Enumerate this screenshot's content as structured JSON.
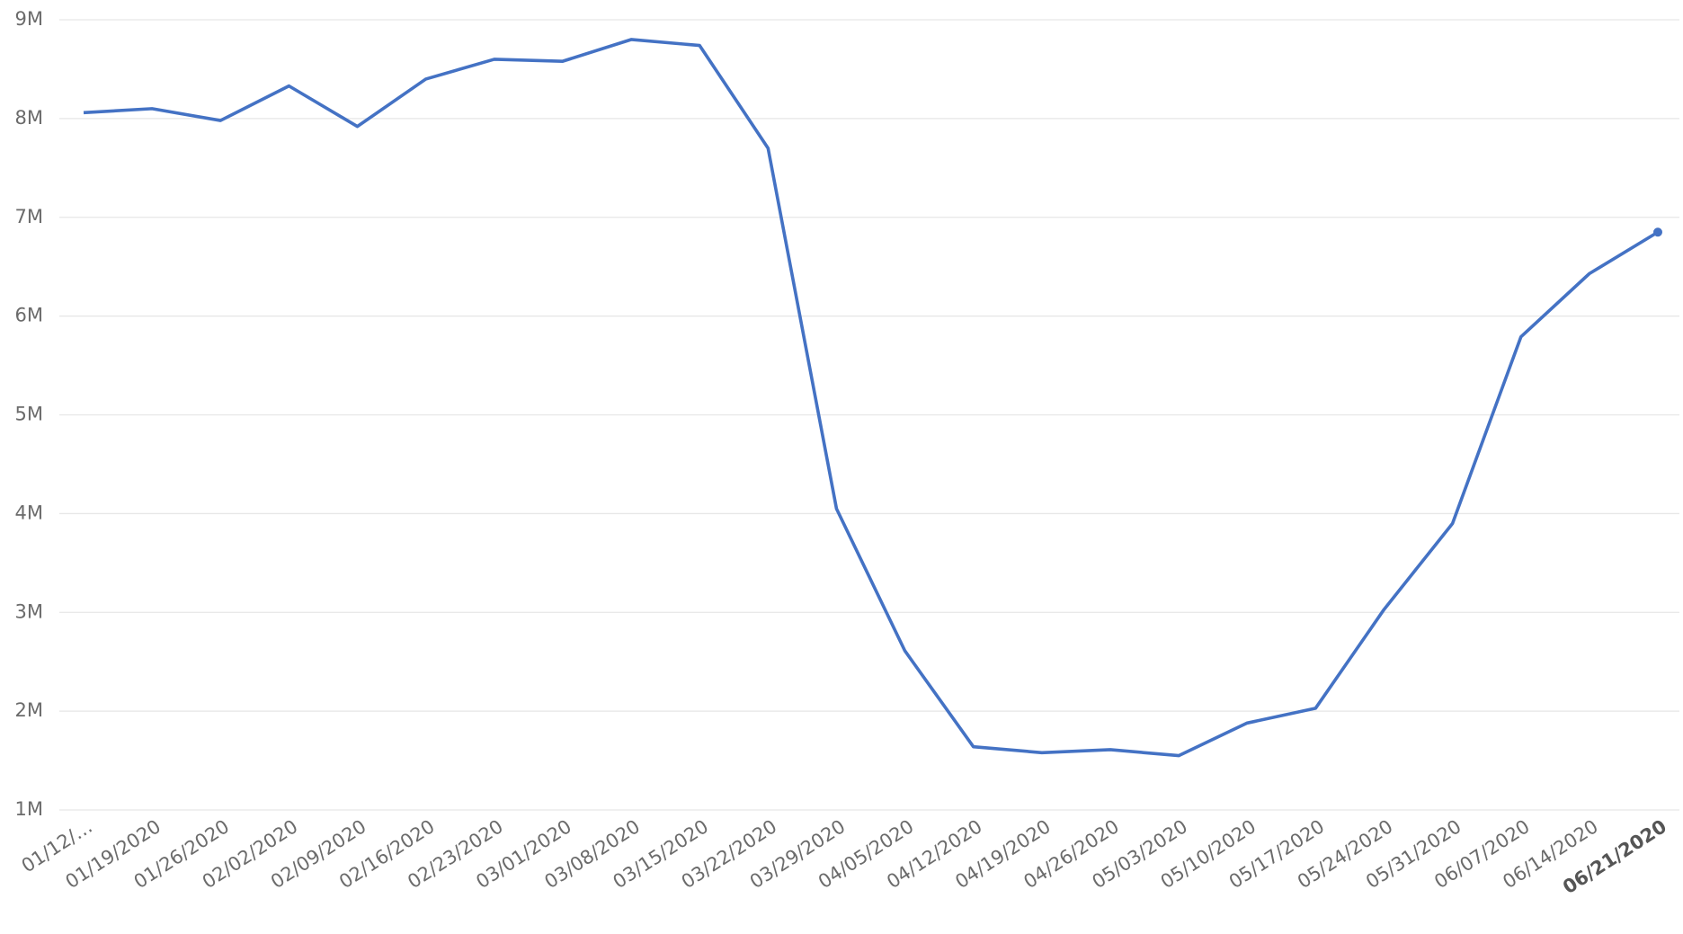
{
  "chart_data": {
    "type": "line",
    "categories": [
      "01/12/…",
      "01/19/2020",
      "01/26/2020",
      "02/02/2020",
      "02/09/2020",
      "02/16/2020",
      "02/23/2020",
      "03/01/2020",
      "03/08/2020",
      "03/15/2020",
      "03/22/2020",
      "03/29/2020",
      "04/05/2020",
      "04/12/2020",
      "04/19/2020",
      "04/26/2020",
      "05/03/2020",
      "05/10/2020",
      "05/17/2020",
      "05/24/2020",
      "05/31/2020",
      "06/07/2020",
      "06/14/2020",
      "06/21/2020"
    ],
    "series": [
      {
        "color": "#4472c4",
        "values": [
          8060000,
          8100000,
          7980000,
          8330000,
          7920000,
          8400000,
          8600000,
          8580000,
          8800000,
          8740000,
          7700000,
          4050000,
          2610000,
          1640000,
          1580000,
          1610000,
          1550000,
          1880000,
          2030000,
          3030000,
          3900000,
          5790000,
          6430000,
          6850000
        ]
      }
    ],
    "ylim": [
      1000000,
      9000000
    ],
    "yticks": [
      {
        "value": 1000000,
        "label": "1M"
      },
      {
        "value": 2000000,
        "label": "2M"
      },
      {
        "value": 3000000,
        "label": "3M"
      },
      {
        "value": 4000000,
        "label": "4M"
      },
      {
        "value": 5000000,
        "label": "5M"
      },
      {
        "value": 6000000,
        "label": "6M"
      },
      {
        "value": 7000000,
        "label": "7M"
      },
      {
        "value": 8000000,
        "label": "8M"
      },
      {
        "value": 9000000,
        "label": "9M"
      }
    ],
    "grid": true
  }
}
